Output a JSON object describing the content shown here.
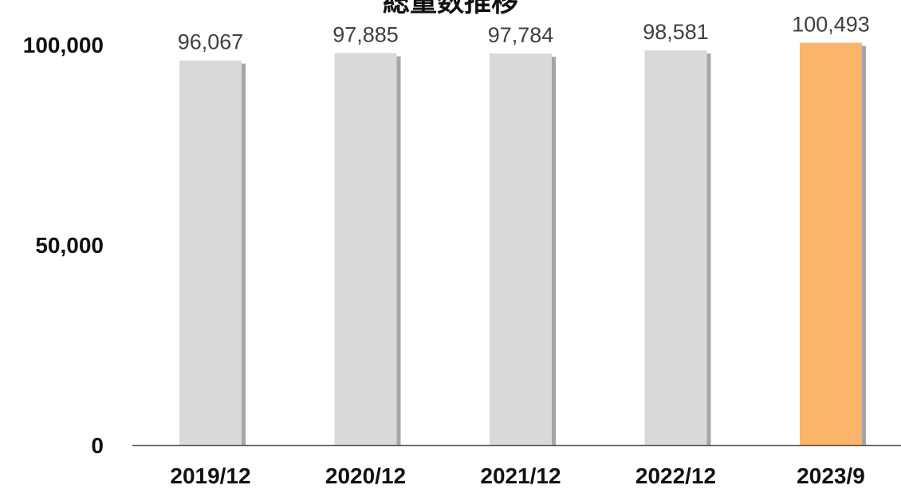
{
  "chart_data": {
    "type": "bar",
    "title": "総量数推移",
    "categories": [
      "2019/12",
      "2020/12",
      "2021/12",
      "2022/12",
      "2023/9"
    ],
    "values": [
      96067,
      97885,
      97784,
      98581,
      100493
    ],
    "data_labels": [
      "96,067",
      "97,885",
      "97,784",
      "98,581",
      "100,493"
    ],
    "y_ticks": [
      0,
      50000,
      100000
    ],
    "y_tick_labels": [
      "0",
      "50,000",
      "100,000"
    ],
    "ylim": [
      0,
      100000
    ],
    "xlabel": "",
    "ylabel": "",
    "grid": false,
    "legend": "none",
    "colors": {
      "default_bar": "#d9d9d9",
      "highlight_bar": "#fbb56b",
      "bar_shadow": "#a6a6a6",
      "axis": "#555555",
      "text": "#111111",
      "data_label": "#404040"
    },
    "highlight_index": 4
  }
}
